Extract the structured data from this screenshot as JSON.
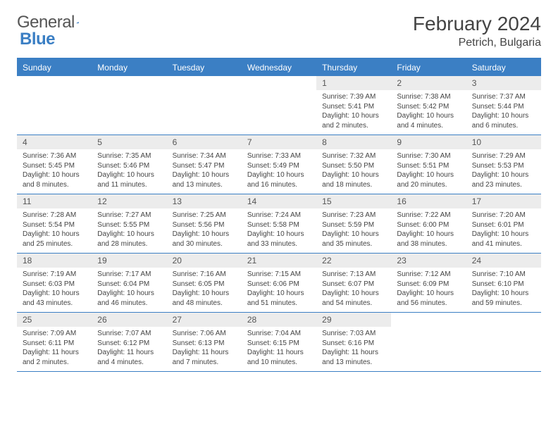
{
  "logo": {
    "text_general": "General",
    "text_blue": "Blue"
  },
  "header": {
    "title": "February 2024",
    "location": "Petrich, Bulgaria"
  },
  "colors": {
    "accent": "#3b7fc4",
    "cell_header_bg": "#ececec",
    "text": "#444444"
  },
  "day_names": [
    "Sunday",
    "Monday",
    "Tuesday",
    "Wednesday",
    "Thursday",
    "Friday",
    "Saturday"
  ],
  "weeks": [
    [
      {
        "day": "",
        "sunrise": "",
        "sunset": "",
        "daylight": ""
      },
      {
        "day": "",
        "sunrise": "",
        "sunset": "",
        "daylight": ""
      },
      {
        "day": "",
        "sunrise": "",
        "sunset": "",
        "daylight": ""
      },
      {
        "day": "",
        "sunrise": "",
        "sunset": "",
        "daylight": ""
      },
      {
        "day": "1",
        "sunrise": "Sunrise: 7:39 AM",
        "sunset": "Sunset: 5:41 PM",
        "daylight": "Daylight: 10 hours and 2 minutes."
      },
      {
        "day": "2",
        "sunrise": "Sunrise: 7:38 AM",
        "sunset": "Sunset: 5:42 PM",
        "daylight": "Daylight: 10 hours and 4 minutes."
      },
      {
        "day": "3",
        "sunrise": "Sunrise: 7:37 AM",
        "sunset": "Sunset: 5:44 PM",
        "daylight": "Daylight: 10 hours and 6 minutes."
      }
    ],
    [
      {
        "day": "4",
        "sunrise": "Sunrise: 7:36 AM",
        "sunset": "Sunset: 5:45 PM",
        "daylight": "Daylight: 10 hours and 8 minutes."
      },
      {
        "day": "5",
        "sunrise": "Sunrise: 7:35 AM",
        "sunset": "Sunset: 5:46 PM",
        "daylight": "Daylight: 10 hours and 11 minutes."
      },
      {
        "day": "6",
        "sunrise": "Sunrise: 7:34 AM",
        "sunset": "Sunset: 5:47 PM",
        "daylight": "Daylight: 10 hours and 13 minutes."
      },
      {
        "day": "7",
        "sunrise": "Sunrise: 7:33 AM",
        "sunset": "Sunset: 5:49 PM",
        "daylight": "Daylight: 10 hours and 16 minutes."
      },
      {
        "day": "8",
        "sunrise": "Sunrise: 7:32 AM",
        "sunset": "Sunset: 5:50 PM",
        "daylight": "Daylight: 10 hours and 18 minutes."
      },
      {
        "day": "9",
        "sunrise": "Sunrise: 7:30 AM",
        "sunset": "Sunset: 5:51 PM",
        "daylight": "Daylight: 10 hours and 20 minutes."
      },
      {
        "day": "10",
        "sunrise": "Sunrise: 7:29 AM",
        "sunset": "Sunset: 5:53 PM",
        "daylight": "Daylight: 10 hours and 23 minutes."
      }
    ],
    [
      {
        "day": "11",
        "sunrise": "Sunrise: 7:28 AM",
        "sunset": "Sunset: 5:54 PM",
        "daylight": "Daylight: 10 hours and 25 minutes."
      },
      {
        "day": "12",
        "sunrise": "Sunrise: 7:27 AM",
        "sunset": "Sunset: 5:55 PM",
        "daylight": "Daylight: 10 hours and 28 minutes."
      },
      {
        "day": "13",
        "sunrise": "Sunrise: 7:25 AM",
        "sunset": "Sunset: 5:56 PM",
        "daylight": "Daylight: 10 hours and 30 minutes."
      },
      {
        "day": "14",
        "sunrise": "Sunrise: 7:24 AM",
        "sunset": "Sunset: 5:58 PM",
        "daylight": "Daylight: 10 hours and 33 minutes."
      },
      {
        "day": "15",
        "sunrise": "Sunrise: 7:23 AM",
        "sunset": "Sunset: 5:59 PM",
        "daylight": "Daylight: 10 hours and 35 minutes."
      },
      {
        "day": "16",
        "sunrise": "Sunrise: 7:22 AM",
        "sunset": "Sunset: 6:00 PM",
        "daylight": "Daylight: 10 hours and 38 minutes."
      },
      {
        "day": "17",
        "sunrise": "Sunrise: 7:20 AM",
        "sunset": "Sunset: 6:01 PM",
        "daylight": "Daylight: 10 hours and 41 minutes."
      }
    ],
    [
      {
        "day": "18",
        "sunrise": "Sunrise: 7:19 AM",
        "sunset": "Sunset: 6:03 PM",
        "daylight": "Daylight: 10 hours and 43 minutes."
      },
      {
        "day": "19",
        "sunrise": "Sunrise: 7:17 AM",
        "sunset": "Sunset: 6:04 PM",
        "daylight": "Daylight: 10 hours and 46 minutes."
      },
      {
        "day": "20",
        "sunrise": "Sunrise: 7:16 AM",
        "sunset": "Sunset: 6:05 PM",
        "daylight": "Daylight: 10 hours and 48 minutes."
      },
      {
        "day": "21",
        "sunrise": "Sunrise: 7:15 AM",
        "sunset": "Sunset: 6:06 PM",
        "daylight": "Daylight: 10 hours and 51 minutes."
      },
      {
        "day": "22",
        "sunrise": "Sunrise: 7:13 AM",
        "sunset": "Sunset: 6:07 PM",
        "daylight": "Daylight: 10 hours and 54 minutes."
      },
      {
        "day": "23",
        "sunrise": "Sunrise: 7:12 AM",
        "sunset": "Sunset: 6:09 PM",
        "daylight": "Daylight: 10 hours and 56 minutes."
      },
      {
        "day": "24",
        "sunrise": "Sunrise: 7:10 AM",
        "sunset": "Sunset: 6:10 PM",
        "daylight": "Daylight: 10 hours and 59 minutes."
      }
    ],
    [
      {
        "day": "25",
        "sunrise": "Sunrise: 7:09 AM",
        "sunset": "Sunset: 6:11 PM",
        "daylight": "Daylight: 11 hours and 2 minutes."
      },
      {
        "day": "26",
        "sunrise": "Sunrise: 7:07 AM",
        "sunset": "Sunset: 6:12 PM",
        "daylight": "Daylight: 11 hours and 4 minutes."
      },
      {
        "day": "27",
        "sunrise": "Sunrise: 7:06 AM",
        "sunset": "Sunset: 6:13 PM",
        "daylight": "Daylight: 11 hours and 7 minutes."
      },
      {
        "day": "28",
        "sunrise": "Sunrise: 7:04 AM",
        "sunset": "Sunset: 6:15 PM",
        "daylight": "Daylight: 11 hours and 10 minutes."
      },
      {
        "day": "29",
        "sunrise": "Sunrise: 7:03 AM",
        "sunset": "Sunset: 6:16 PM",
        "daylight": "Daylight: 11 hours and 13 minutes."
      },
      {
        "day": "",
        "sunrise": "",
        "sunset": "",
        "daylight": ""
      },
      {
        "day": "",
        "sunrise": "",
        "sunset": "",
        "daylight": ""
      }
    ]
  ]
}
